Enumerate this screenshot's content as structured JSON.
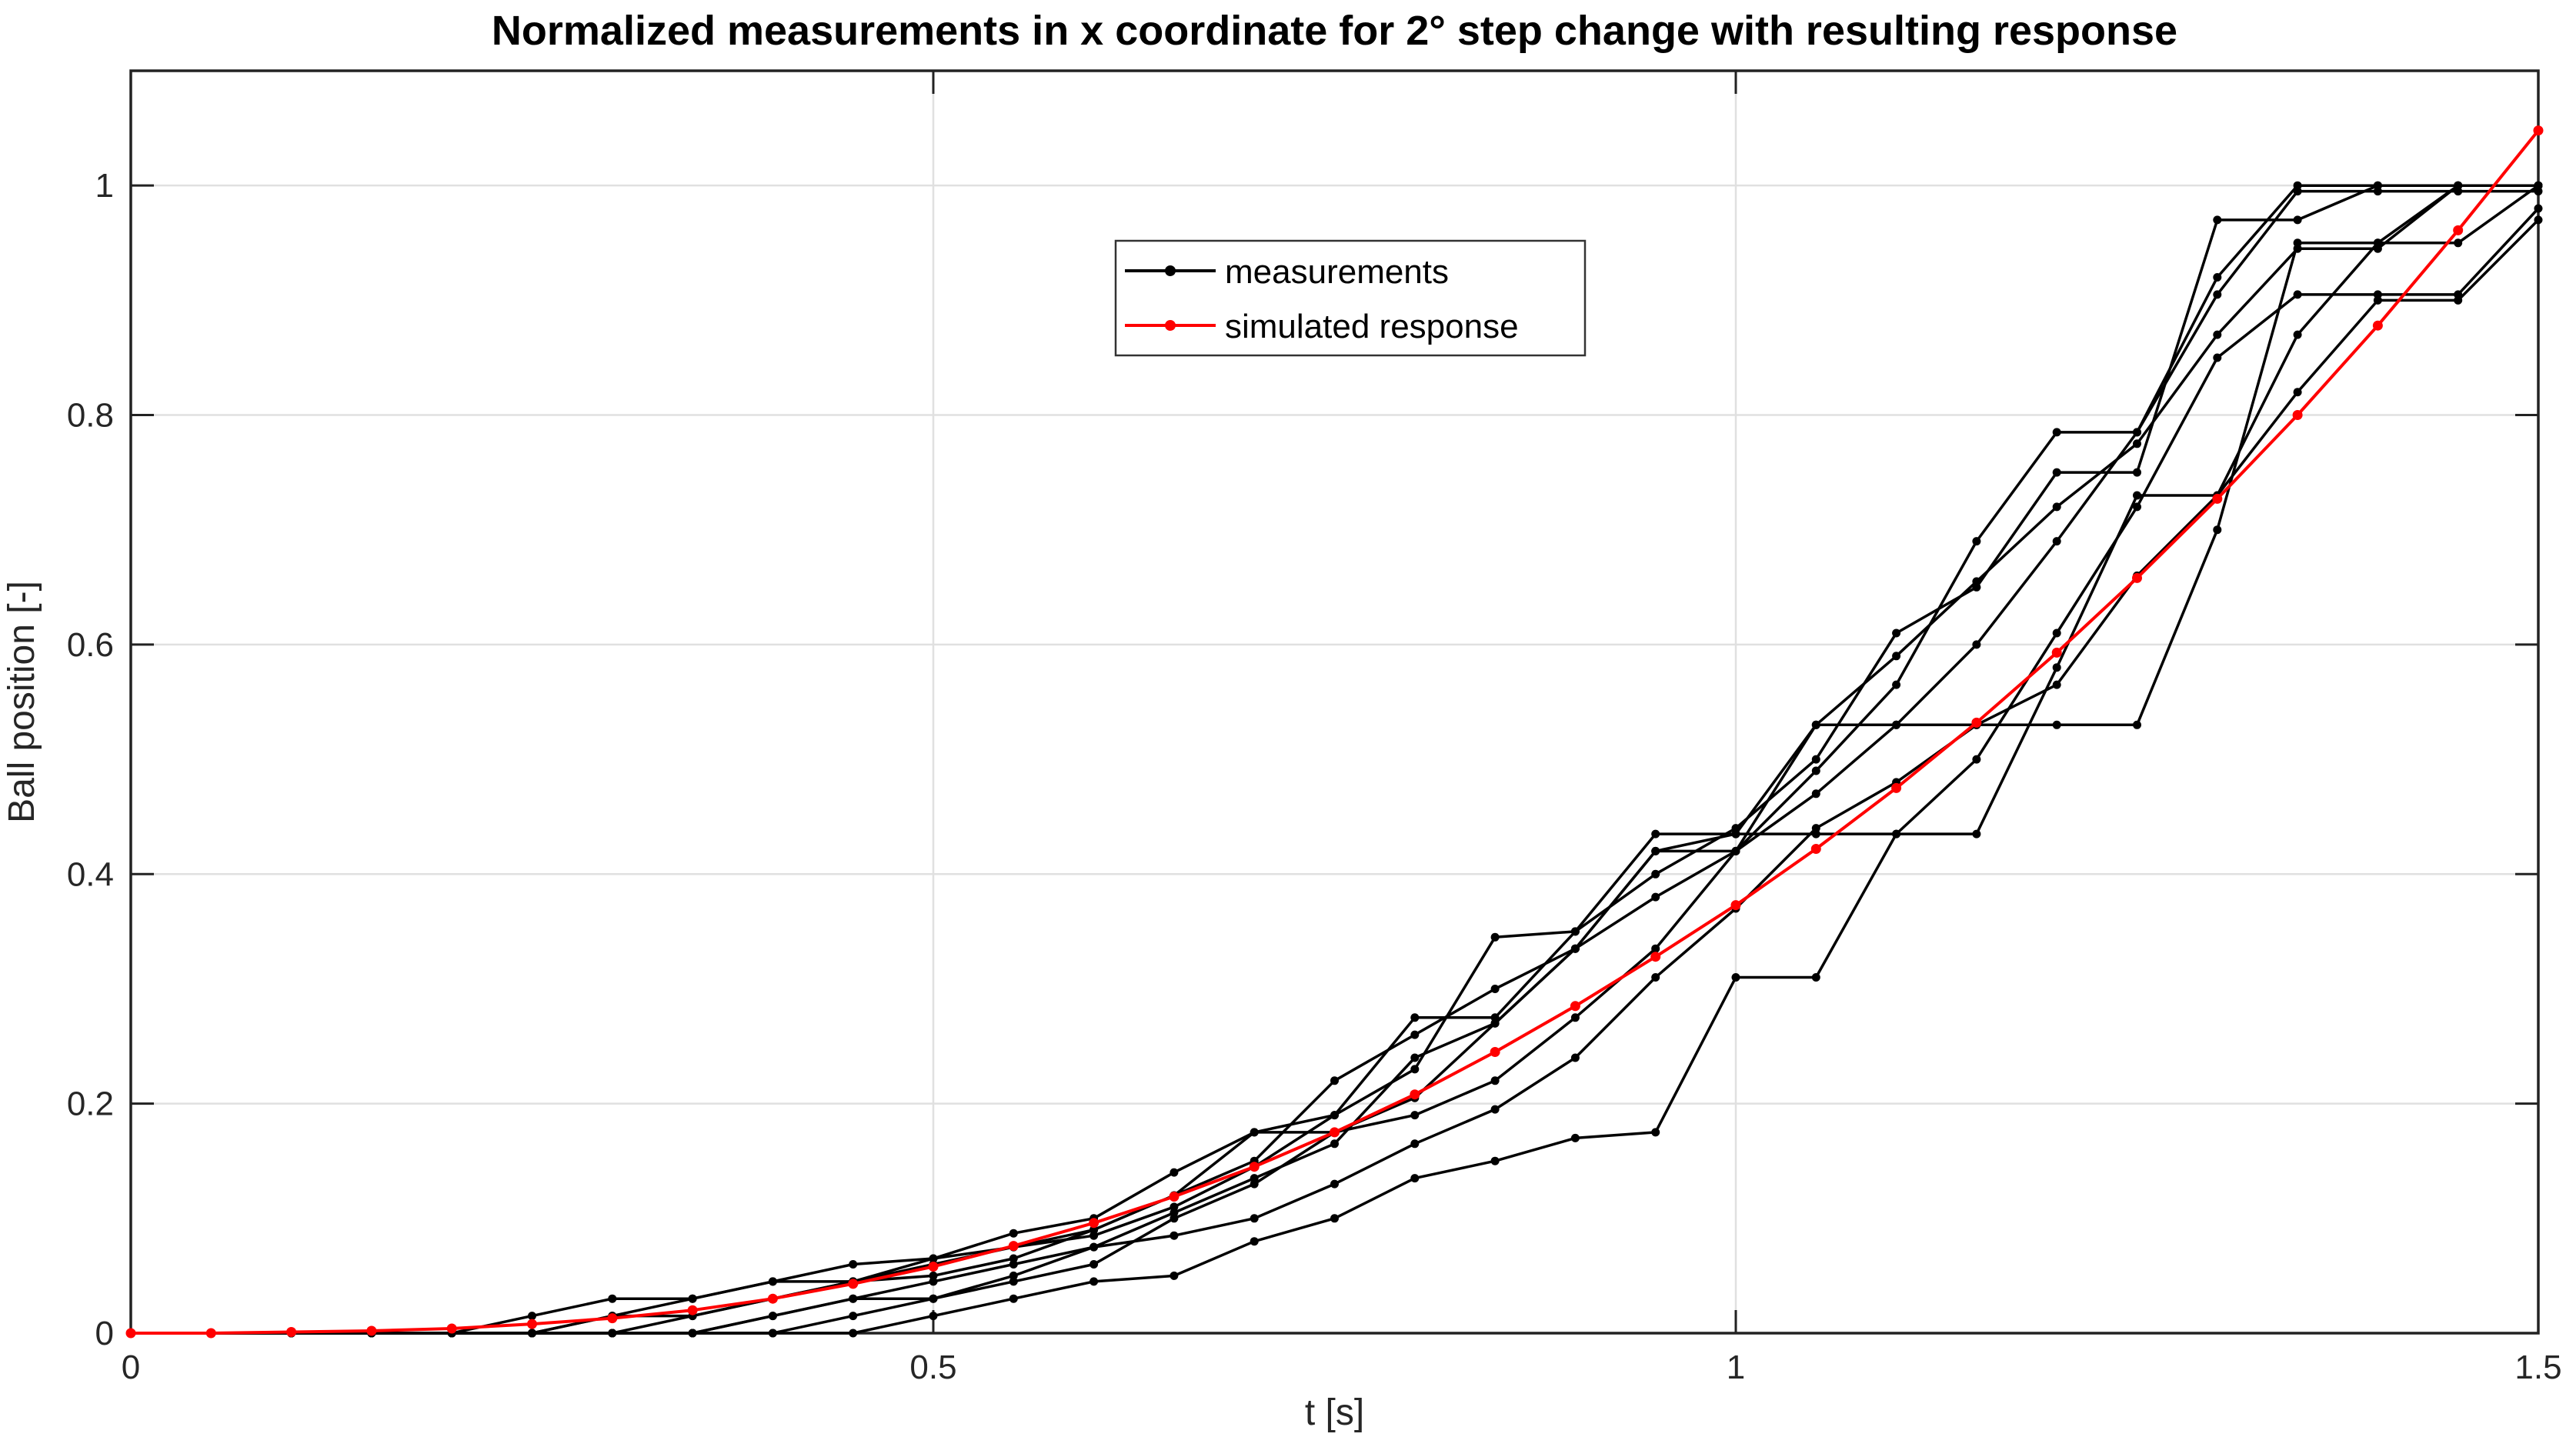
{
  "chart_data": {
    "type": "line",
    "title": "Normalized measurements in x coordinate for 2° step change with resulting response",
    "xlabel": "t [s]",
    "ylabel": "Ball position [-]",
    "xlim": [
      0,
      1.5
    ],
    "ylim": [
      0,
      1.1
    ],
    "grid": true,
    "xticks": {
      "values": [
        0,
        0.5,
        1,
        1.5
      ],
      "labels": [
        "0",
        "0.5",
        "1",
        "1.5"
      ]
    },
    "yticks": {
      "values": [
        0,
        0.2,
        0.4,
        0.6,
        0.8,
        1
      ],
      "labels": [
        "0",
        "0.2",
        "0.4",
        "0.6",
        "0.8",
        "1"
      ]
    },
    "colors": {
      "measurement": "#000000",
      "simulated": "#ff0000",
      "grid": "#e0e0e0",
      "axis": "#222222",
      "tick_label": "#262626"
    },
    "legend": {
      "position": "upper-center",
      "items": [
        {
          "label": "measurements",
          "color": "#000000"
        },
        {
          "label": "simulated response",
          "color": "#ff0000"
        }
      ]
    },
    "x": [
      0,
      0.05,
      0.1,
      0.15,
      0.2,
      0.25,
      0.3,
      0.35,
      0.4,
      0.45,
      0.5,
      0.55,
      0.6,
      0.65,
      0.7,
      0.75,
      0.8,
      0.85,
      0.9,
      0.95,
      1,
      1.05,
      1.1,
      1.15,
      1.2,
      1.25,
      1.3,
      1.35,
      1.4,
      1.45,
      1.5
    ],
    "series": [
      {
        "name": "measurement-1",
        "group": "measurements",
        "color": "#000000",
        "values": [
          0,
          0,
          0,
          0,
          0,
          0,
          0.015,
          0.015,
          0.03,
          0.045,
          0.06,
          0.075,
          0.09,
          0.12,
          0.175,
          0.175,
          0.205,
          0.27,
          0.335,
          0.42,
          0.435,
          0.435,
          0.435,
          0.435,
          0.58,
          0.73,
          0.73,
          0.87,
          0.95,
          0.95,
          1
        ]
      },
      {
        "name": "measurement-2",
        "group": "measurements",
        "color": "#000000",
        "values": [
          0,
          0,
          0,
          0,
          0,
          0,
          0,
          0,
          0.015,
          0.03,
          0.045,
          0.06,
          0.075,
          0.105,
          0.135,
          0.165,
          0.24,
          0.27,
          0.335,
          0.38,
          0.42,
          0.53,
          0.53,
          0.53,
          0.53,
          0.53,
          0.7,
          0.95,
          0.95,
          1,
          1
        ]
      },
      {
        "name": "measurement-3",
        "group": "measurements",
        "color": "#000000",
        "values": [
          0,
          0,
          0,
          0,
          0,
          0,
          0,
          0,
          0,
          0,
          0.015,
          0.03,
          0.045,
          0.05,
          0.08,
          0.1,
          0.135,
          0.15,
          0.17,
          0.175,
          0.31,
          0.31,
          0.435,
          0.5,
          0.61,
          0.72,
          0.85,
          0.905,
          0.905,
          0.905,
          0.98
        ]
      },
      {
        "name": "measurement-4",
        "group": "measurements",
        "color": "#000000",
        "values": [
          0,
          0,
          0,
          0,
          0,
          0,
          0.015,
          0.03,
          0.045,
          0.045,
          0.065,
          0.087,
          0.1,
          0.14,
          0.175,
          0.19,
          0.275,
          0.275,
          0.35,
          0.4,
          0.44,
          0.5,
          0.61,
          0.65,
          0.75,
          0.75,
          0.97,
          0.97,
          1,
          1,
          1
        ]
      },
      {
        "name": "measurement-5",
        "group": "measurements",
        "color": "#000000",
        "values": [
          0,
          0,
          0,
          0,
          0,
          0,
          0,
          0,
          0.015,
          0.03,
          0.03,
          0.045,
          0.06,
          0.1,
          0.13,
          0.175,
          0.19,
          0.22,
          0.275,
          0.335,
          0.42,
          0.47,
          0.53,
          0.6,
          0.69,
          0.785,
          0.905,
          0.995,
          0.995,
          0.995,
          0.995
        ]
      },
      {
        "name": "measurement-6",
        "group": "measurements",
        "color": "#000000",
        "values": [
          0,
          0,
          0,
          0,
          0,
          0,
          0,
          0.015,
          0.03,
          0.045,
          0.05,
          0.065,
          0.09,
          0.12,
          0.15,
          0.22,
          0.26,
          0.3,
          0.335,
          0.42,
          0.42,
          0.49,
          0.565,
          0.69,
          0.785,
          0.785,
          0.92,
          1,
          1,
          1,
          1
        ]
      },
      {
        "name": "measurement-7",
        "group": "measurements",
        "color": "#000000",
        "values": [
          0,
          0,
          0,
          0,
          0,
          0,
          0,
          0,
          0,
          0.015,
          0.03,
          0.05,
          0.075,
          0.085,
          0.1,
          0.13,
          0.165,
          0.195,
          0.24,
          0.31,
          0.37,
          0.44,
          0.48,
          0.53,
          0.565,
          0.66,
          0.73,
          0.82,
          0.9,
          0.9,
          0.97
        ]
      },
      {
        "name": "measurement-8",
        "group": "measurements",
        "color": "#000000",
        "values": [
          0,
          0,
          0,
          0,
          0,
          0.015,
          0.03,
          0.03,
          0.045,
          0.06,
          0.065,
          0.075,
          0.085,
          0.11,
          0.145,
          0.19,
          0.23,
          0.345,
          0.35,
          0.435,
          0.435,
          0.53,
          0.59,
          0.655,
          0.72,
          0.775,
          0.87,
          0.945,
          0.945,
          1,
          1
        ]
      },
      {
        "name": "simulated-response",
        "group": "simulated response",
        "color": "#ff0000",
        "values": [
          0,
          0,
          0.001,
          0.002,
          0.004,
          0.008,
          0.013,
          0.02,
          0.03,
          0.043,
          0.058,
          0.076,
          0.096,
          0.119,
          0.145,
          0.175,
          0.208,
          0.245,
          0.285,
          0.328,
          0.373,
          0.422,
          0.475,
          0.532,
          0.593,
          0.658,
          0.727,
          0.8,
          0.878,
          0.961,
          1.048
        ]
      }
    ]
  }
}
